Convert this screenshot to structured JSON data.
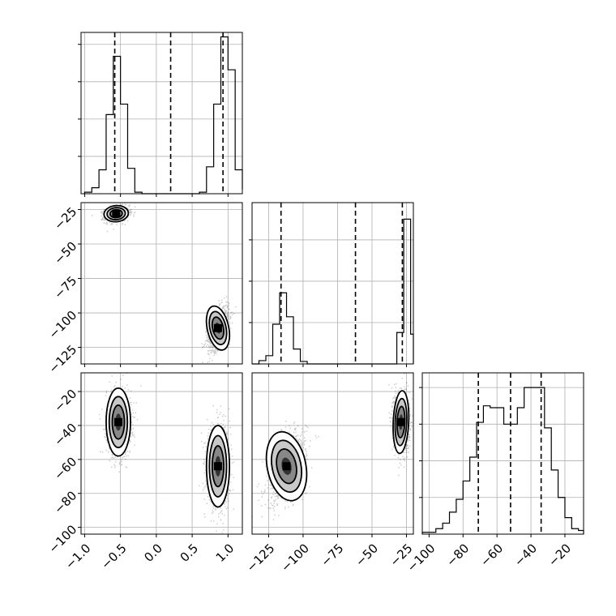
{
  "chart_data": {
    "type": "corner",
    "params": [
      {
        "id": "p0",
        "range": [
          -1.05,
          1.2
        ],
        "ticks": [
          -1.0,
          -0.5,
          0.0,
          0.5,
          1.0
        ],
        "tick_labels": [
          "−1.0",
          "−0.5",
          "0.0",
          "0.5",
          "1.0"
        ]
      },
      {
        "id": "p1",
        "range": [
          -137,
          -20
        ],
        "ticks": [
          -125,
          -100,
          -75,
          -50,
          -25
        ],
        "tick_labels": [
          "−125",
          "−100",
          "−75",
          "−50",
          "−25"
        ]
      },
      {
        "id": "p2",
        "range": [
          -104,
          -9
        ],
        "ticks": [
          -100,
          -80,
          -60,
          -40,
          -20
        ],
        "tick_labels": [
          "−100",
          "−80",
          "−60",
          "−40",
          "−20"
        ]
      }
    ],
    "histograms": [
      {
        "param": 0,
        "bins": [
          -1.0,
          -0.9,
          -0.8,
          -0.7,
          -0.6,
          -0.5,
          -0.4,
          -0.3,
          -0.2,
          -0.1,
          0.0,
          0.1,
          0.2,
          0.3,
          0.4,
          0.5,
          0.6,
          0.7,
          0.8,
          0.9,
          1.0,
          1.1,
          1.2
        ],
        "counts": [
          1,
          4,
          16,
          53,
          92,
          60,
          17,
          1,
          0,
          0,
          0,
          0,
          0,
          0,
          0,
          0,
          1,
          18,
          60,
          105,
          83,
          16,
          3
        ],
        "ymax": 108,
        "quantiles": [
          -0.58,
          0.2,
          0.93
        ]
      },
      {
        "param": 1,
        "bins": [
          -137,
          -132,
          -127,
          -122,
          -117,
          -112,
          -107,
          -102,
          -97,
          -92,
          -87,
          -82,
          -77,
          -72,
          -67,
          -62,
          -57,
          -52,
          -47,
          -42,
          -37,
          -32,
          -27,
          -22,
          -20
        ],
        "counts": [
          0,
          4,
          10,
          48,
          86,
          57,
          18,
          3,
          0,
          0,
          0,
          0,
          0,
          0,
          0,
          0,
          0,
          0,
          0,
          0,
          0,
          38,
          175,
          36
        ],
        "ymax": 195,
        "quantiles": [
          -116,
          -62,
          -28
        ]
      },
      {
        "param": 2,
        "bins": [
          -104,
          -100,
          -96,
          -92,
          -88,
          -84,
          -80,
          -76,
          -72,
          -68,
          -64,
          -60,
          -56,
          -52,
          -48,
          -44,
          -40,
          -36,
          -32,
          -28,
          -24,
          -20,
          -16,
          -12,
          -9
        ],
        "counts": [
          1,
          1,
          3,
          6,
          12,
          19,
          29,
          42,
          61,
          70,
          69,
          69,
          60,
          60,
          69,
          80,
          80,
          80,
          58,
          35,
          20,
          9,
          3,
          2
        ],
        "ymax": 88,
        "quantiles": [
          -71,
          -52,
          -34
        ]
      }
    ],
    "pairs": [
      {
        "x_param": 0,
        "y_param": 1,
        "clusters": [
          {
            "center": [
              -0.56,
              -28
            ],
            "sd": [
              0.085,
              2.8
            ],
            "rho": 0.2
          },
          {
            "center": [
              0.86,
              -111
            ],
            "sd": [
              0.075,
              8
            ],
            "rho": 0.5
          }
        ]
      },
      {
        "x_param": 0,
        "y_param": 2,
        "clusters": [
          {
            "center": [
              -0.53,
              -38
            ],
            "sd": [
              0.085,
              10
            ],
            "rho": 0.0
          },
          {
            "center": [
              0.86,
              -64
            ],
            "sd": [
              0.08,
              12
            ],
            "rho": 0.0
          }
        ]
      },
      {
        "x_param": 1,
        "y_param": 2,
        "clusters": [
          {
            "center": [
              -112,
              -64
            ],
            "sd": [
              7,
              10
            ],
            "rho": 0.45
          },
          {
            "center": [
              -29,
              -38
            ],
            "sd": [
              2.8,
              9
            ],
            "rho": -0.1
          }
        ]
      }
    ],
    "grid": true
  }
}
